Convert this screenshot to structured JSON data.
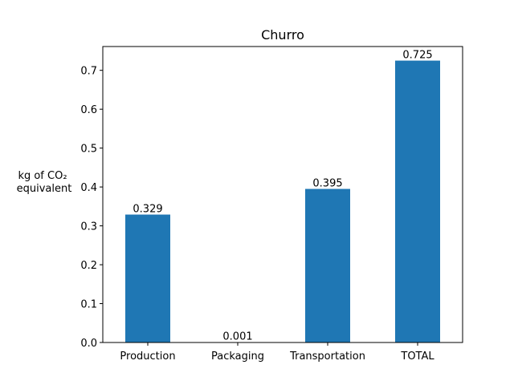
{
  "chart_data": {
    "type": "bar",
    "title": "Churro",
    "xlabel": "",
    "ylabel_lines": [
      "kg of CO₂",
      "equivalent"
    ],
    "categories": [
      "Production",
      "Packaging",
      "Transportation",
      "TOTAL"
    ],
    "values": [
      0.329,
      0.001,
      0.395,
      0.725
    ],
    "data_labels": [
      "0.329",
      "0.001",
      "0.395",
      "0.725"
    ],
    "yticks": [
      0.0,
      0.1,
      0.2,
      0.3,
      0.4,
      0.5,
      0.6,
      0.7
    ],
    "ytick_labels": [
      "0.0",
      "0.1",
      "0.2",
      "0.3",
      "0.4",
      "0.5",
      "0.6",
      "0.7"
    ],
    "ylim": [
      0,
      0.76125
    ],
    "grid": false,
    "bar_color": "#1f77b4"
  }
}
